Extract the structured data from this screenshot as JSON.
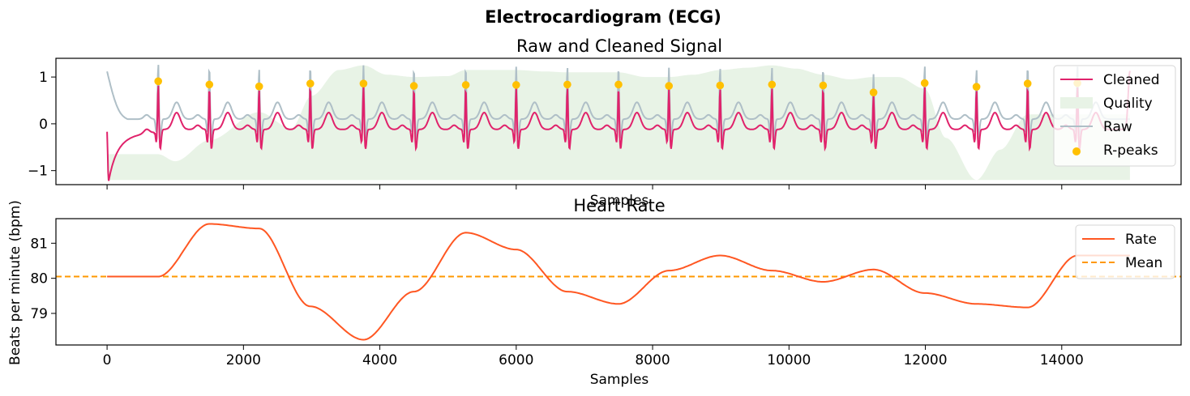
{
  "figure": {
    "suptitle": "Electrocardiogram (ECG)"
  },
  "chart_data": [
    {
      "type": "line",
      "title": "Raw and Cleaned Signal",
      "xlabel": "Samples",
      "ylabel": "",
      "xlim": [
        -750,
        15750
      ],
      "ylim": [
        -1.3,
        1.4
      ],
      "yticks": [
        -1,
        0,
        1
      ],
      "ytick_labels": [
        "−1",
        "0",
        "1"
      ],
      "xticks": [
        0,
        2000,
        4000,
        6000,
        8000,
        10000,
        12000,
        14000
      ],
      "show_xtick_labels": false,
      "grid": false,
      "legend": {
        "position": "top-right",
        "entries": [
          {
            "label": "Cleaned",
            "kind": "line",
            "color": "#E0226B"
          },
          {
            "label": "Quality",
            "kind": "patch",
            "color": "#E8F3E6"
          },
          {
            "label": "Raw",
            "kind": "line",
            "color": "#AFBFC7"
          },
          {
            "label": "R-peaks",
            "kind": "marker",
            "color": "#FFC000"
          }
        ]
      },
      "r_peaks": {
        "x": [
          750,
          1500,
          2230,
          2980,
          3760,
          4500,
          5260,
          6000,
          6750,
          7500,
          8240,
          8990,
          9750,
          10500,
          11240,
          11990,
          12750,
          13500,
          14230
        ],
        "y": [
          0.91,
          0.84,
          0.8,
          0.86,
          0.86,
          0.81,
          0.83,
          0.83,
          0.84,
          0.84,
          0.81,
          0.82,
          0.84,
          0.82,
          0.67,
          0.87,
          0.79,
          0.86,
          0.87
        ]
      },
      "quality": {
        "baseline": -1.2,
        "x": [
          0,
          750,
          1000,
          1500,
          2230,
          2700,
          3000,
          3400,
          3760,
          4100,
          4500,
          5000,
          5260,
          5600,
          6000,
          6400,
          6750,
          7100,
          7500,
          7900,
          8240,
          8600,
          8990,
          9400,
          9750,
          10100,
          10500,
          10900,
          11240,
          11600,
          11990,
          12300,
          12750,
          13100,
          13500,
          13800,
          14230,
          14600,
          15000
        ],
        "y": [
          -0.65,
          -0.65,
          -0.8,
          -0.35,
          0.25,
          -0.1,
          0.6,
          1.15,
          1.25,
          1.05,
          1.0,
          1.02,
          1.15,
          1.15,
          1.15,
          1.12,
          1.1,
          1.1,
          1.1,
          1.0,
          1.0,
          1.05,
          1.15,
          1.2,
          1.25,
          1.18,
          1.05,
          0.95,
          1.0,
          1.0,
          0.75,
          -0.3,
          -1.2,
          -0.55,
          0.2,
          0.2,
          0.2,
          0.2,
          0.2
        ]
      },
      "cleaned": {
        "color": "#E0226B",
        "sample_range": [
          0,
          15000
        ],
        "start_level": 0.12,
        "end_spike": 1.25
      },
      "raw": {
        "color": "#AFBFC7",
        "sample_range": [
          0,
          15000
        ],
        "start_level": 1.12,
        "offset": 0.12
      }
    },
    {
      "type": "line",
      "title": "Heart Rate",
      "xlabel": "Samples",
      "ylabel": "Beats per minute (bpm)",
      "xlim": [
        -750,
        15750
      ],
      "ylim": [
        78.1,
        81.7
      ],
      "yticks": [
        79,
        80,
        81
      ],
      "ytick_labels": [
        "79",
        "80",
        "81"
      ],
      "xticks": [
        0,
        2000,
        4000,
        6000,
        8000,
        10000,
        12000,
        14000
      ],
      "xtick_labels": [
        "0",
        "2000",
        "4000",
        "6000",
        "8000",
        "10000",
        "12000",
        "14000"
      ],
      "grid": false,
      "legend": {
        "position": "top-right",
        "entries": [
          {
            "label": "Rate",
            "kind": "line",
            "color": "#FF5722"
          },
          {
            "label": "Mean",
            "kind": "dashed",
            "color": "#FF9800"
          }
        ]
      },
      "series": [
        {
          "name": "Rate",
          "color": "#FF5722",
          "x": [
            0,
            750,
            1500,
            2230,
            2980,
            3760,
            4500,
            5260,
            6000,
            6750,
            7500,
            8240,
            8990,
            9750,
            10500,
            11240,
            11990,
            12750,
            13500,
            14230,
            15000
          ],
          "y": [
            80.05,
            80.05,
            81.55,
            81.42,
            79.2,
            78.25,
            79.62,
            81.3,
            80.82,
            79.62,
            79.27,
            80.22,
            80.65,
            80.22,
            79.9,
            80.25,
            79.58,
            79.27,
            79.17,
            80.65,
            80.65
          ]
        }
      ],
      "mean": {
        "name": "Mean",
        "value": 80.05,
        "color": "#FF9800"
      }
    }
  ]
}
